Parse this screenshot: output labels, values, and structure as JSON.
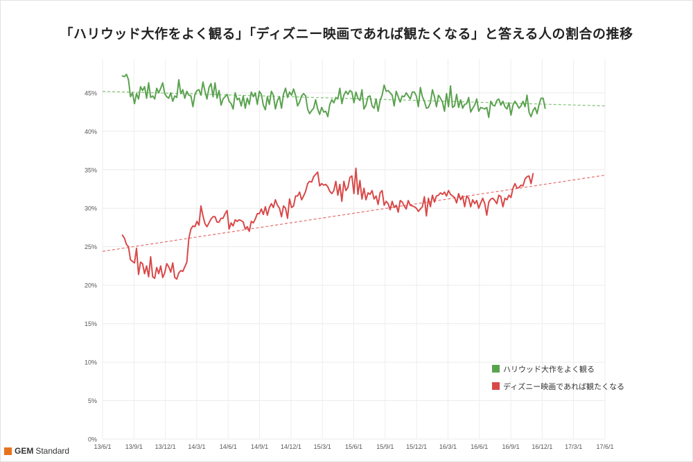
{
  "brand": {
    "logo": "GEM",
    "name": "Standard",
    "accent": "#e8731f"
  },
  "chart_data": {
    "type": "line",
    "title": "「ハリウッド大作をよく観る」「ディズニー映画であれば観たくなる」と答える人の割合の推移",
    "xlabel": "",
    "ylabel": "",
    "x_ticks": [
      "13/6/1",
      "13/9/1",
      "13/12/1",
      "14/3/1",
      "14/6/1",
      "14/9/1",
      "14/12/1",
      "15/3/1",
      "15/6/1",
      "15/9/1",
      "15/12/1",
      "16/3/1",
      "16/6/1",
      "16/9/1",
      "16/12/1",
      "17/3/1",
      "17/6/1"
    ],
    "y_ticks": [
      "0%",
      "5%",
      "10%",
      "15%",
      "20%",
      "25%",
      "30%",
      "35%",
      "40%",
      "45%"
    ],
    "xlim": [
      0,
      48
    ],
    "ylim": [
      0,
      48.5
    ],
    "grid": true,
    "legend_position": "bottom-right",
    "x_unit": "months since 13/6/1",
    "series": [
      {
        "name": "ハリウッド大作をよく観る",
        "color": "#5aa24f",
        "x_start": 1.9,
        "x_step": 0.1923,
        "values": [
          47.2,
          47.1,
          47.4,
          46.7,
          44.5,
          45.0,
          43.6,
          44.9,
          44.2,
          45.8,
          45.3,
          45.8,
          44.3,
          46.3,
          44.4,
          44.6,
          44.2,
          45.6,
          45.0,
          45.6,
          46.3,
          44.9,
          44.5,
          44.3,
          45.0,
          43.9,
          44.6,
          44.4,
          46.7,
          44.9,
          45.4,
          44.3,
          45.2,
          44.7,
          44.6,
          43.2,
          44.8,
          45.3,
          45.4,
          44.7,
          46.4,
          45.2,
          44.2,
          45.7,
          46.2,
          44.5,
          46.3,
          44.3,
          45.3,
          43.4,
          44.2,
          44.5,
          44.8,
          43.9,
          43.6,
          42.9,
          45.0,
          44.1,
          44.3,
          43.3,
          44.6,
          43.0,
          44.3,
          43.5,
          45.1,
          44.5,
          45.0,
          43.5,
          45.2,
          44.8,
          43.4,
          42.8,
          44.5,
          43.5,
          45.2,
          44.7,
          42.9,
          44.0,
          44.5,
          43.0,
          44.8,
          45.6,
          44.4,
          45.1,
          44.7,
          45.5,
          44.7,
          43.3,
          43.8,
          44.6,
          44.9,
          44.6,
          42.9,
          42.3,
          42.7,
          43.0,
          44.1,
          42.9,
          42.2,
          43.1,
          42.5,
          42.6,
          41.9,
          43.5,
          44.1,
          43.7,
          44.4,
          44.2,
          45.6,
          43.6,
          44.7,
          45.2,
          44.8,
          45.3,
          45.1,
          43.7,
          45.1,
          44.3,
          44.0,
          45.4,
          42.9,
          43.4,
          44.5,
          44.6,
          43.3,
          43.0,
          44.2,
          42.6,
          44.0,
          44.7,
          46.0,
          45.2,
          45.3,
          45.0,
          44.7,
          43.3,
          45.2,
          44.5,
          43.8,
          44.6,
          44.5,
          45.0,
          44.6,
          44.2,
          45.1,
          45.1,
          44.6,
          43.2,
          45.7,
          44.5,
          43.9,
          43.0,
          43.1,
          43.7,
          45.4,
          44.5,
          43.2,
          44.7,
          44.3,
          43.8,
          42.6,
          44.9,
          43.2,
          45.9,
          43.1,
          43.3,
          44.8,
          43.1,
          44.1,
          43.0,
          43.5,
          43.6,
          44.4,
          42.5,
          43.0,
          43.4,
          44.2,
          42.6,
          43.1,
          43.0,
          42.9,
          43.1,
          41.8,
          43.9,
          43.4,
          43.3,
          44.0,
          44.2,
          43.4,
          43.9,
          43.2,
          42.9,
          43.7,
          42.1,
          43.4,
          43.9,
          43.5,
          43.0,
          43.3,
          43.9,
          43.2,
          44.7,
          42.5,
          41.9,
          42.7,
          43.1,
          42.3,
          43.5,
          44.3,
          44.3,
          43.0
        ]
      },
      {
        "name": "ディズニー映画であれば観たくなる",
        "color": "#d94848",
        "x_start": 1.9,
        "x_step": 0.1923,
        "values": [
          26.5,
          26.1,
          25.3,
          25.0,
          23.3,
          23.1,
          22.9,
          24.8,
          21.4,
          23.0,
          22.8,
          21.5,
          22.5,
          21.1,
          23.7,
          21.1,
          20.9,
          22.3,
          21.5,
          22.5,
          21.0,
          21.6,
          22.8,
          22.4,
          21.7,
          22.9,
          21.0,
          20.8,
          21.6,
          21.9,
          21.8,
          22.4,
          23.0,
          26.1,
          27.3,
          27.7,
          27.6,
          28.3,
          27.8,
          30.3,
          29.0,
          28.0,
          27.6,
          28.1,
          28.6,
          28.9,
          28.9,
          28.2,
          28.2,
          28.7,
          28.7,
          29.3,
          29.7,
          27.3,
          28.1,
          27.7,
          28.5,
          28.3,
          28.5,
          28.4,
          28.2,
          27.3,
          27.6,
          27.0,
          28.3,
          28.1,
          28.6,
          29.3,
          29.3,
          29.9,
          29.2,
          30.2,
          29.1,
          30.1,
          30.6,
          30.1,
          31.1,
          30.4,
          30.0,
          28.9,
          30.3,
          30.0,
          28.7,
          31.2,
          30.1,
          30.3,
          31.6,
          31.6,
          32.1,
          31.1,
          31.6,
          32.2,
          33.2,
          33.5,
          33.4,
          34.1,
          34.4,
          34.7,
          32.9,
          33.2,
          33.0,
          33.1,
          32.8,
          32.2,
          31.9,
          32.3,
          33.5,
          31.7,
          33.1,
          30.9,
          33.5,
          32.3,
          32.7,
          34.0,
          34.2,
          31.9,
          35.2,
          31.8,
          33.6,
          31.2,
          32.6,
          31.1,
          32.0,
          31.8,
          32.3,
          31.2,
          31.6,
          30.5,
          32.0,
          32.3,
          30.4,
          30.9,
          30.6,
          29.8,
          30.9,
          30.1,
          30.4,
          29.5,
          31.0,
          30.8,
          30.3,
          29.9,
          31.0,
          30.4,
          30.3,
          30.2,
          30.0,
          29.6,
          29.9,
          30.2,
          31.5,
          29.0,
          31.3,
          30.2,
          31.7,
          30.8,
          31.6,
          31.7,
          32.0,
          31.8,
          32.1,
          31.6,
          32.3,
          31.8,
          31.6,
          31.4,
          30.7,
          31.9,
          31.1,
          31.6,
          30.2,
          31.6,
          31.3,
          30.2,
          31.1,
          30.6,
          31.0,
          30.0,
          30.7,
          31.3,
          30.6,
          29.1,
          30.8,
          31.2,
          31.3,
          31.0,
          30.6,
          31.7,
          31.5,
          30.2,
          31.3,
          31.1,
          31.7,
          31.4,
          32.6,
          33.2,
          32.6,
          32.7,
          33.0,
          32.9,
          33.8,
          34.1,
          34.2,
          33.2,
          34.5
        ]
      }
    ],
    "trendlines": [
      {
        "series": "ハリウッド大作をよく観る",
        "color": "#7cc26f",
        "x": [
          0,
          48
        ],
        "y": [
          45.2,
          43.3
        ]
      },
      {
        "series": "ディズニー映画であれば観たくなる",
        "color": "#e56a6a",
        "x": [
          0,
          48
        ],
        "y": [
          24.4,
          34.3
        ]
      }
    ]
  }
}
